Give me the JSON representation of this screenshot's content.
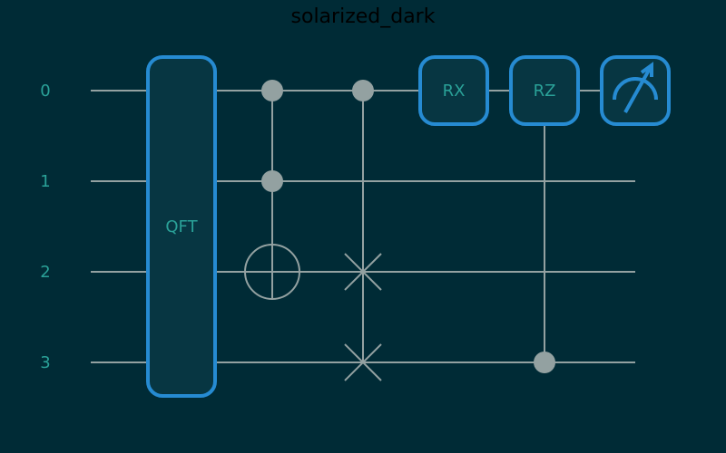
{
  "title": "solarized_dark",
  "qubits": [
    "0",
    "1",
    "2",
    "3"
  ],
  "gates": {
    "qft": {
      "label": "QFT"
    },
    "rx": {
      "label": "RX"
    },
    "rz": {
      "label": "RZ"
    }
  },
  "colors": {
    "background": "#002b36",
    "wire": "#93a1a1",
    "gate_fill": "#073642",
    "gate_border": "#268bd2",
    "label_text": "#2aa198",
    "title_text": "#000000"
  },
  "icons": {
    "measure": "measurement-meter-icon"
  }
}
